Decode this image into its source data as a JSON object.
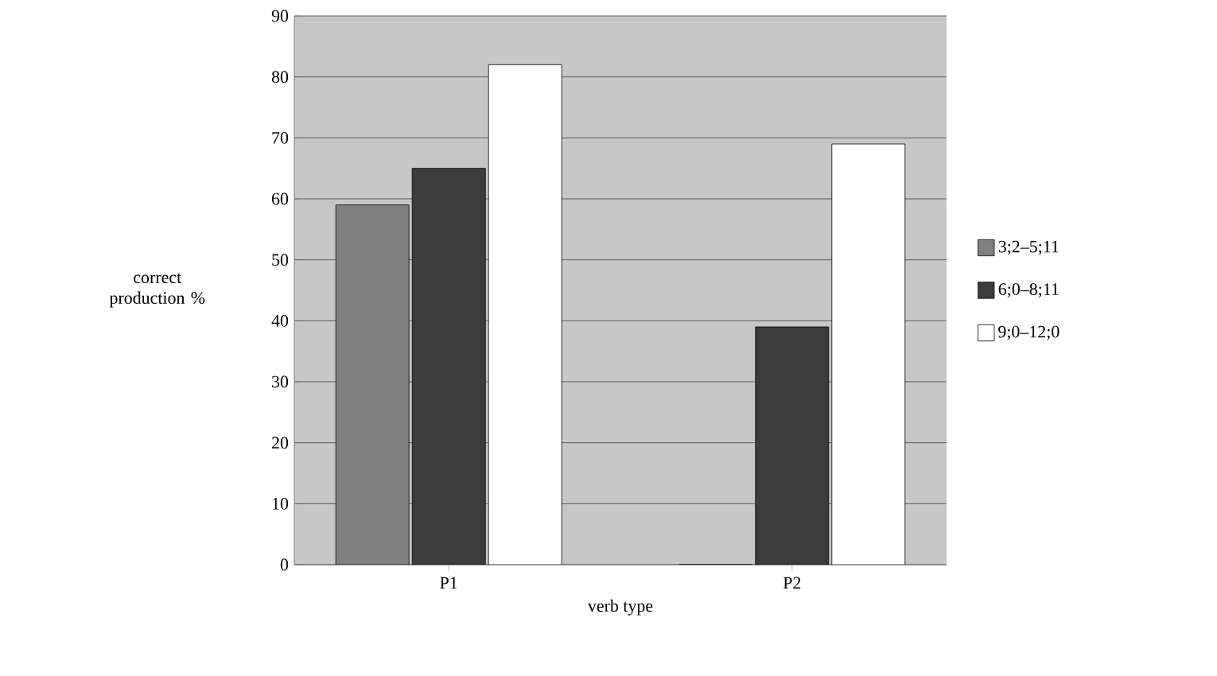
{
  "chart_data": {
    "type": "bar",
    "xlabel": "verb type",
    "ylabel": "correct production %",
    "categories": [
      "P1",
      "P2"
    ],
    "series": [
      {
        "name": "3;2–5;11",
        "color": "#808080",
        "values": [
          59,
          0
        ]
      },
      {
        "name": "6;0–8;11",
        "color": "#3c3c3c",
        "values": [
          65,
          39
        ]
      },
      {
        "name": "9;0–12;0",
        "color": "#ffffff",
        "values": [
          82,
          69
        ]
      }
    ],
    "ylim": [
      0,
      90
    ],
    "yticks": [
      0,
      10,
      20,
      30,
      40,
      50,
      60,
      70,
      80,
      90
    ],
    "grid": "y",
    "legend": "right"
  }
}
